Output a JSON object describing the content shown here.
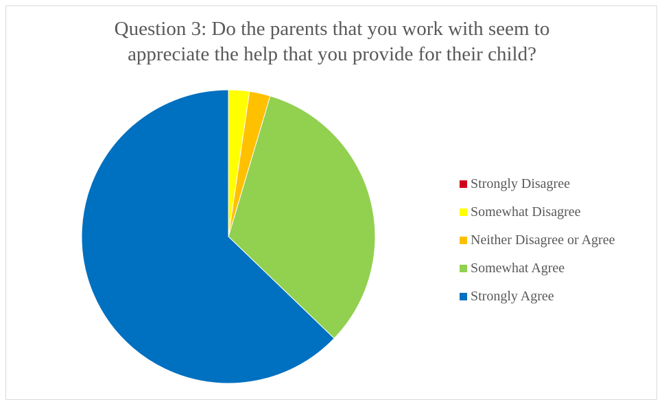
{
  "chart_data": {
    "type": "pie",
    "title_lines": [
      "Question 3: Do the parents that you work with seem to",
      "appreciate the help that you provide for their child?"
    ],
    "categories": [
      "Strongly Disagree",
      "Somewhat Disagree",
      "Neither Disagree or Agree",
      "Somewhat Agree",
      "Strongly Agree"
    ],
    "values": [
      0,
      2.3,
      2.3,
      32.6,
      62.8
    ],
    "colors": [
      "#d0021b",
      "#ffff00",
      "#ffc000",
      "#92d050",
      "#0070c0"
    ],
    "legend_position": "right"
  }
}
